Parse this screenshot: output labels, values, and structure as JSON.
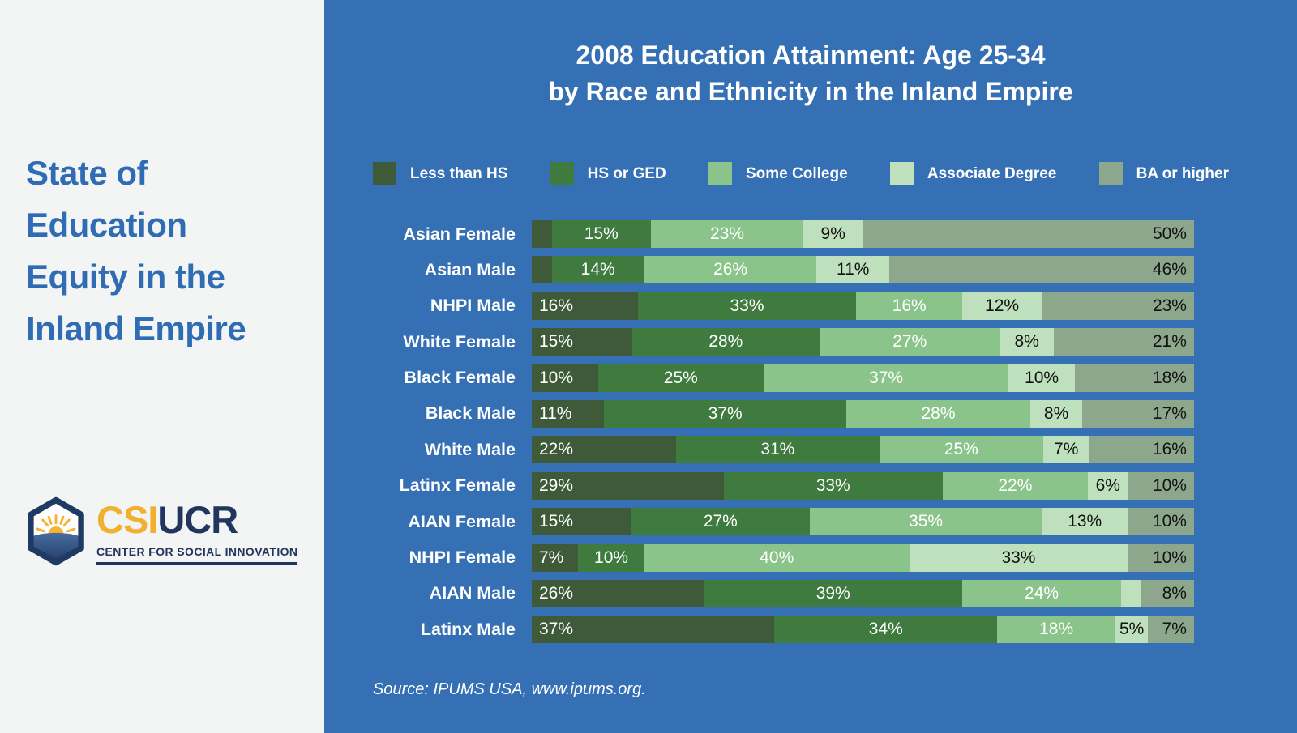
{
  "sidebar": {
    "title_lines": [
      "State of",
      "Education",
      "Equity in the",
      "Inland Empire"
    ],
    "logo": {
      "acronym_primary": "CSI",
      "acronym_secondary": "UCR",
      "tagline": "CENTER FOR SOCIAL INNOVATION"
    }
  },
  "header": {
    "title_line1": "2008 Education Attainment: Age 25-34",
    "title_line2": "by Race and Ethnicity in the Inland Empire"
  },
  "source": "Source: IPUMS USA, www.ipums.org.",
  "colors": {
    "background_blue": "#3670B4",
    "sidebar_bg": "#F3F5F4",
    "sidebar_text": "#2F6CB4",
    "logo_gold": "#F2B02F",
    "logo_navy": "#21355F",
    "series": [
      "#3E5A39",
      "#3F7A3E",
      "#8AC48A",
      "#BFE0BC",
      "#8CA78B"
    ],
    "series_text": [
      "#FFFFFF",
      "#FFFFFF",
      "#FFFFFF",
      "#111111",
      "#111111"
    ]
  },
  "chart_data": {
    "type": "stacked_bar_horizontal",
    "title": "2008 Education Attainment: Age 25-34 by Race and Ethnicity in the Inland Empire",
    "unit": "percent",
    "legend_position": "top",
    "series_names": [
      "Less than HS",
      "HS or GED",
      "Some College",
      "Associate Degree",
      "BA or higher"
    ],
    "categories": [
      "Asian Female",
      "Asian Male",
      "NHPI Male",
      "White Female",
      "Black Female",
      "Black Male",
      "White Male",
      "Latinx Female",
      "AIAN Female",
      "NHPI Female",
      "AIAN Male",
      "Latinx Male"
    ],
    "rows": [
      {
        "category": "Asian Female",
        "values": [
          3,
          15,
          23,
          9,
          50
        ],
        "labels": [
          "",
          "15%",
          "23%",
          "9%",
          "50%"
        ]
      },
      {
        "category": "Asian Male",
        "values": [
          3,
          14,
          26,
          11,
          46
        ],
        "labels": [
          "",
          "14%",
          "26%",
          "11%",
          "46%"
        ]
      },
      {
        "category": "NHPI Male",
        "values": [
          16,
          33,
          16,
          12,
          23
        ],
        "labels": [
          "16%",
          "33%",
          "16%",
          "12%",
          "23%"
        ]
      },
      {
        "category": "White Female",
        "values": [
          15,
          28,
          27,
          8,
          21
        ],
        "labels": [
          "15%",
          "28%",
          "27%",
          "8%",
          "21%"
        ]
      },
      {
        "category": "Black Female",
        "values": [
          10,
          25,
          37,
          10,
          18
        ],
        "labels": [
          "10%",
          "25%",
          "37%",
          "10%",
          "18%"
        ]
      },
      {
        "category": "Black Male",
        "values": [
          11,
          37,
          28,
          8,
          17
        ],
        "labels": [
          "11%",
          "37%",
          "28%",
          "8%",
          "17%"
        ]
      },
      {
        "category": "White Male",
        "values": [
          22,
          31,
          25,
          7,
          16
        ],
        "labels": [
          "22%",
          "31%",
          "25%",
          "7%",
          "16%"
        ]
      },
      {
        "category": "Latinx Female",
        "values": [
          29,
          33,
          22,
          6,
          10
        ],
        "labels": [
          "29%",
          "33%",
          "22%",
          "6%",
          "10%"
        ]
      },
      {
        "category": "AIAN Female",
        "values": [
          15,
          27,
          35,
          13,
          10
        ],
        "labels": [
          "15%",
          "27%",
          "35%",
          "13%",
          "10%"
        ]
      },
      {
        "category": "NHPI Female",
        "values": [
          7,
          10,
          40,
          33,
          10
        ],
        "labels": [
          "7%",
          "10%",
          "40%",
          "33%",
          "10%"
        ]
      },
      {
        "category": "AIAN Male",
        "values": [
          26,
          39,
          24,
          3,
          8
        ],
        "labels": [
          "26%",
          "39%",
          "24%",
          "",
          "8%"
        ]
      },
      {
        "category": "Latinx Male",
        "values": [
          37,
          34,
          18,
          5,
          7
        ],
        "labels": [
          "37%",
          "34%",
          "18%",
          "5%",
          "7%"
        ]
      }
    ]
  }
}
